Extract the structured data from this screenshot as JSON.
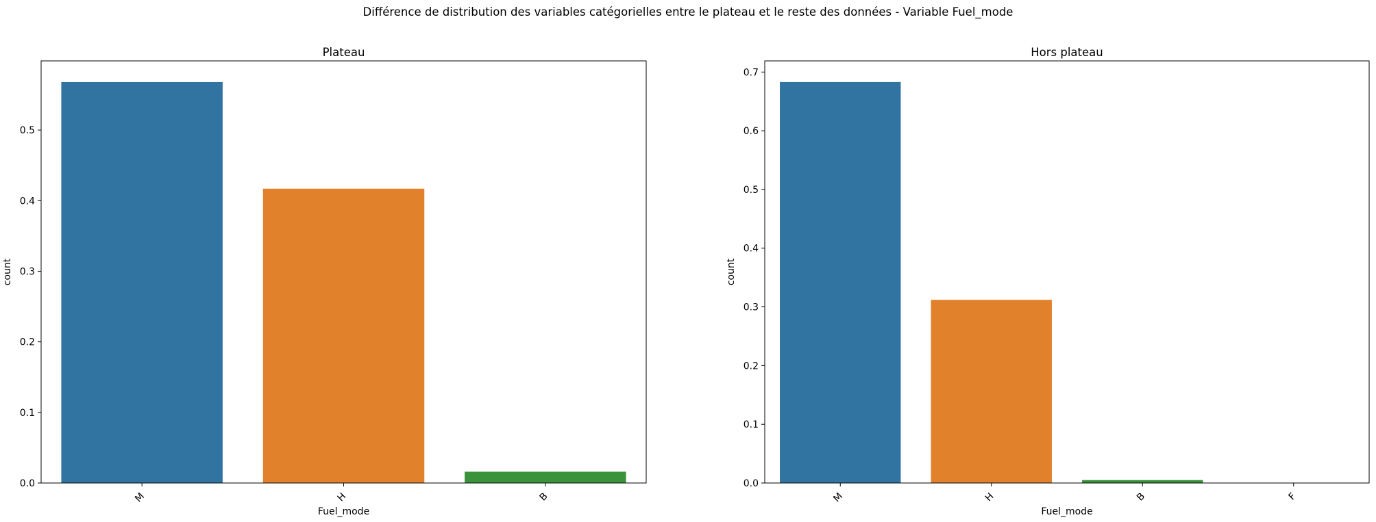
{
  "figure": {
    "suptitle": "Différence de distribution des variables catégorielles entre le plateau et le reste des données - Variable Fuel_mode"
  },
  "chart_data": [
    {
      "type": "bar",
      "title": "Plateau",
      "xlabel": "Fuel_mode",
      "ylabel": "count",
      "categories": [
        "M",
        "H",
        "B"
      ],
      "values": [
        0.568,
        0.417,
        0.016
      ],
      "colors": [
        "#3274a1",
        "#e1812c",
        "#3a923a"
      ],
      "ylim": [
        0,
        0.598
      ],
      "yticks": [
        0.0,
        0.1,
        0.2,
        0.3,
        0.4,
        0.5
      ],
      "ytick_labels": [
        "0.0",
        "0.1",
        "0.2",
        "0.3",
        "0.4",
        "0.5"
      ],
      "xtick_rotation": 45,
      "grid": false,
      "legend": "none"
    },
    {
      "type": "bar",
      "title": "Hors plateau",
      "xlabel": "Fuel_mode",
      "ylabel": "count",
      "categories": [
        "M",
        "H",
        "B",
        "F"
      ],
      "values": [
        0.683,
        0.312,
        0.005,
        0.0
      ],
      "colors": [
        "#3274a1",
        "#e1812c",
        "#3a923a",
        "#c03d3e"
      ],
      "ylim": [
        0,
        0.719
      ],
      "yticks": [
        0.0,
        0.1,
        0.2,
        0.3,
        0.4,
        0.5,
        0.6,
        0.7
      ],
      "ytick_labels": [
        "0.0",
        "0.1",
        "0.2",
        "0.3",
        "0.4",
        "0.5",
        "0.6",
        "0.7"
      ],
      "xtick_rotation": 45,
      "grid": false,
      "legend": "none"
    }
  ]
}
